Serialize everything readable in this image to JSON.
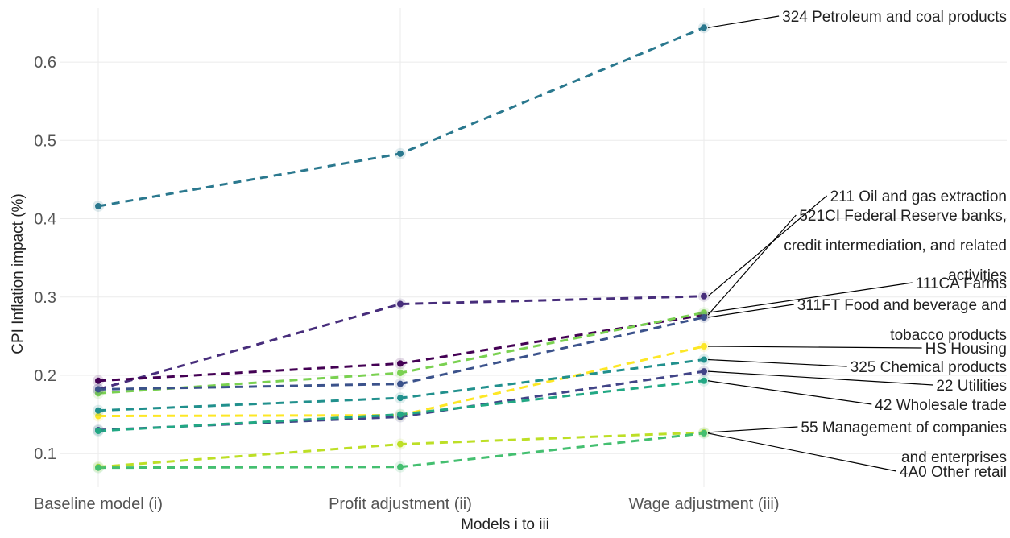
{
  "chart_data": {
    "type": "line",
    "x_label": "Models i to iii",
    "y_label": "CPI Inflation impact (%)",
    "categories": [
      "Baseline model (i)",
      "Profit adjustment (ii)",
      "Wage adjustment (iii)"
    ],
    "ylim": [
      0.057,
      0.669
    ],
    "yticks": [
      0.1,
      0.2,
      0.3,
      0.4,
      0.5,
      0.6
    ],
    "grid": true,
    "series": [
      {
        "name": "324 Petroleum and coal products",
        "color": "#2a788e",
        "values": [
          0.416,
          0.483,
          0.644
        ]
      },
      {
        "name": "211 Oil and gas extraction",
        "color": "#472d7b",
        "values": [
          0.182,
          0.291,
          0.301
        ]
      },
      {
        "name": "521CI Federal Reserve banks, credit intermediation, and related activities",
        "color": "#440154",
        "values": [
          0.193,
          0.215,
          0.277
        ]
      },
      {
        "name": "111CA Farms",
        "color": "#7ad151",
        "values": [
          0.177,
          0.203,
          0.28
        ]
      },
      {
        "name": "311FT Food and beverage and tobacco products",
        "color": "#3b528b",
        "values": [
          0.182,
          0.189,
          0.274
        ]
      },
      {
        "name": "HS Housing",
        "color": "#fde725",
        "values": [
          0.148,
          0.149,
          0.237
        ]
      },
      {
        "name": "325 Chemical products",
        "color": "#21908d",
        "values": [
          0.155,
          0.171,
          0.22
        ]
      },
      {
        "name": "22 Utilities",
        "color": "#414487",
        "values": [
          0.13,
          0.147,
          0.205
        ]
      },
      {
        "name": "42 Wholesale trade",
        "color": "#22a884",
        "values": [
          0.129,
          0.15,
          0.193
        ]
      },
      {
        "name": "55 Management of companies and enterprises",
        "color": "#bddf26",
        "values": [
          0.083,
          0.112,
          0.127
        ]
      },
      {
        "name": "4A0 Other retail",
        "color": "#44bf70",
        "values": [
          0.082,
          0.083,
          0.126
        ]
      }
    ]
  }
}
